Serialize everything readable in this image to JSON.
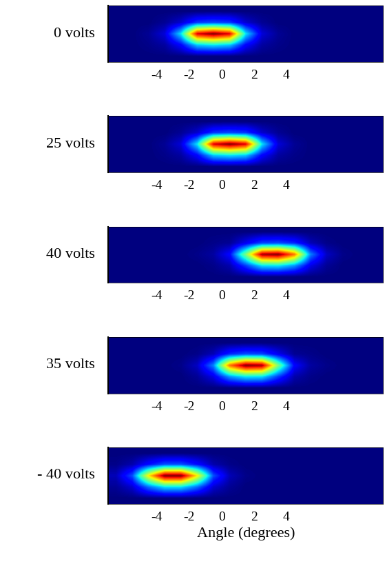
{
  "chart_data": [
    {
      "type": "heatmap",
      "label": "0 volts",
      "x": [
        -6.5,
        -5.5,
        -4.5,
        -3.5,
        -2.5,
        -1.5,
        -0.5,
        0.5,
        1.5,
        2.5,
        3.5,
        4.5,
        5.5,
        6.5,
        7.5,
        8.5,
        9.5
      ],
      "cells": [
        [
          0,
          0,
          0,
          0,
          0,
          0,
          0,
          0,
          0,
          0,
          0,
          0,
          0,
          0,
          0,
          0,
          0
        ],
        [
          0,
          0,
          0,
          0.02,
          0.07,
          0.18,
          0.2,
          0.18,
          0.07,
          0.02,
          0,
          0,
          0,
          0,
          0,
          0,
          0
        ],
        [
          0,
          0,
          0.02,
          0.08,
          0.35,
          0.92,
          1.0,
          0.92,
          0.35,
          0.08,
          0.02,
          0,
          0,
          0,
          0,
          0,
          0
        ],
        [
          0,
          0,
          0.01,
          0.03,
          0.12,
          0.32,
          0.35,
          0.32,
          0.12,
          0.03,
          0.01,
          0,
          0,
          0,
          0,
          0,
          0
        ],
        [
          0,
          0,
          0,
          0,
          0,
          0,
          0,
          0,
          0,
          0,
          0,
          0,
          0,
          0,
          0,
          0,
          0
        ]
      ],
      "xlim": [
        -7,
        10
      ],
      "xticks": [
        -4,
        -2,
        0,
        2,
        4
      ],
      "tick_labels": "x"
    },
    {
      "type": "heatmap",
      "label": "25 volts",
      "x": [
        -6.5,
        -5.5,
        -4.5,
        -3.5,
        -2.5,
        -1.5,
        -0.5,
        0.5,
        1.5,
        2.5,
        3.5,
        4.5,
        5.5,
        6.5,
        7.5,
        8.5,
        9.5
      ],
      "cells": [
        [
          0,
          0,
          0,
          0,
          0,
          0,
          0,
          0,
          0,
          0,
          0,
          0,
          0,
          0,
          0,
          0,
          0
        ],
        [
          0,
          0,
          0,
          0,
          0.02,
          0.07,
          0.18,
          0.2,
          0.18,
          0.07,
          0.02,
          0,
          0,
          0,
          0,
          0,
          0
        ],
        [
          0,
          0,
          0,
          0.02,
          0.08,
          0.35,
          0.92,
          1.0,
          0.92,
          0.35,
          0.08,
          0.02,
          0,
          0,
          0,
          0,
          0
        ],
        [
          0,
          0,
          0,
          0.01,
          0.03,
          0.12,
          0.32,
          0.35,
          0.32,
          0.12,
          0.03,
          0.01,
          0,
          0,
          0,
          0,
          0
        ],
        [
          0,
          0,
          0,
          0,
          0,
          0,
          0,
          0,
          0,
          0,
          0,
          0,
          0,
          0,
          0,
          0,
          0
        ]
      ],
      "xlim": [
        -7,
        10
      ],
      "xticks": [
        -4,
        -2,
        0,
        2,
        4
      ],
      "tick_labels": "x"
    },
    {
      "type": "heatmap",
      "label": "40 volts",
      "x": [
        -6.5,
        -5.5,
        -4.5,
        -3.5,
        -2.5,
        -1.5,
        -0.5,
        0.5,
        1.5,
        2.5,
        3.5,
        4.5,
        5.5,
        6.5,
        7.5,
        8.5,
        9.5
      ],
      "cells": [
        [
          0,
          0,
          0,
          0,
          0,
          0,
          0,
          0,
          0,
          0,
          0,
          0,
          0,
          0,
          0,
          0,
          0
        ],
        [
          0,
          0,
          0,
          0,
          0,
          0,
          0.01,
          0.02,
          0.1,
          0.19,
          0.2,
          0.16,
          0.05,
          0.01,
          0,
          0,
          0
        ],
        [
          0,
          0,
          0,
          0,
          0,
          0.01,
          0.03,
          0.12,
          0.5,
          0.96,
          0.99,
          0.78,
          0.25,
          0.06,
          0.01,
          0,
          0
        ],
        [
          0,
          0,
          0,
          0,
          0,
          0,
          0.01,
          0.04,
          0.18,
          0.34,
          0.35,
          0.27,
          0.09,
          0.02,
          0,
          0,
          0
        ],
        [
          0,
          0,
          0,
          0,
          0,
          0,
          0,
          0,
          0,
          0,
          0,
          0,
          0,
          0,
          0,
          0,
          0
        ]
      ],
      "xlim": [
        -7,
        10
      ],
      "xticks": [
        -4,
        -2,
        0,
        2,
        4
      ],
      "tick_labels": "x"
    },
    {
      "type": "heatmap",
      "label": "35 volts",
      "x": [
        -6.5,
        -5.5,
        -4.5,
        -3.5,
        -2.5,
        -1.5,
        -0.5,
        0.5,
        1.5,
        2.5,
        3.5,
        4.5,
        5.5,
        6.5,
        7.5,
        8.5,
        9.5
      ],
      "cells": [
        [
          0,
          0,
          0,
          0,
          0,
          0,
          0,
          0,
          0,
          0,
          0,
          0,
          0,
          0,
          0,
          0,
          0
        ],
        [
          0,
          0,
          0,
          0,
          0,
          0.01,
          0.05,
          0.16,
          0.2,
          0.19,
          0.1,
          0.02,
          0.01,
          0,
          0,
          0,
          0
        ],
        [
          0,
          0,
          0,
          0,
          0.01,
          0.06,
          0.25,
          0.78,
          0.99,
          0.96,
          0.5,
          0.12,
          0.03,
          0.01,
          0,
          0,
          0
        ],
        [
          0,
          0,
          0,
          0,
          0,
          0.02,
          0.09,
          0.27,
          0.35,
          0.34,
          0.18,
          0.04,
          0.01,
          0,
          0,
          0,
          0
        ],
        [
          0,
          0,
          0,
          0,
          0,
          0,
          0,
          0,
          0,
          0,
          0,
          0,
          0,
          0,
          0,
          0,
          0
        ]
      ],
      "xlim": [
        -7,
        10
      ],
      "xticks": [
        -4,
        -2,
        0,
        2,
        4
      ],
      "tick_labels": "x"
    },
    {
      "type": "heatmap",
      "label": "- 40 volts",
      "x": [
        -6.5,
        -5.5,
        -4.5,
        -3.5,
        -2.5,
        -1.5,
        -0.5,
        0.5,
        1.5,
        2.5,
        3.5,
        4.5,
        5.5,
        6.5,
        7.5,
        8.5,
        9.5
      ],
      "cells": [
        [
          0,
          0,
          0,
          0,
          0,
          0,
          0,
          0,
          0,
          0,
          0,
          0,
          0,
          0,
          0,
          0,
          0
        ],
        [
          0.01,
          0.04,
          0.13,
          0.2,
          0.2,
          0.13,
          0.04,
          0.01,
          0,
          0,
          0,
          0,
          0,
          0,
          0,
          0,
          0
        ],
        [
          0.05,
          0.2,
          0.65,
          0.98,
          0.98,
          0.65,
          0.2,
          0.05,
          0.01,
          0,
          0,
          0,
          0,
          0,
          0,
          0,
          0
        ],
        [
          0.02,
          0.07,
          0.23,
          0.34,
          0.34,
          0.23,
          0.07,
          0.02,
          0,
          0,
          0,
          0,
          0,
          0,
          0,
          0,
          0
        ],
        [
          0,
          0,
          0,
          0,
          0,
          0,
          0,
          0,
          0,
          0,
          0,
          0,
          0,
          0,
          0,
          0,
          0
        ]
      ],
      "xlim": [
        -7,
        10
      ],
      "xticks": [
        -4,
        -2,
        0,
        2,
        4
      ],
      "tick_labels": "x",
      "x_label": "Angle (degrees)"
    }
  ]
}
